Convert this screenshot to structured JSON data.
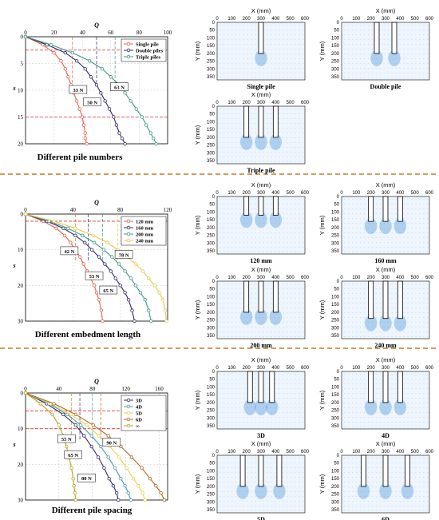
{
  "colors": {
    "single": "#e8604c",
    "double": "#2e2a6b",
    "triple": "#3c9a86",
    "e120": "#e8604c",
    "e160": "#2e2a6b",
    "e200": "#3c9a86",
    "e240": "#e8c84a",
    "s3d": "#2e2a6b",
    "s4d": "#4f9aa8",
    "s5d": "#e8d24a",
    "s6d": "#b5651d",
    "sinf": "#b8a020",
    "separator": "#d89a5a",
    "refline": "#e03030",
    "pivfield": "#3a8ad8"
  },
  "chart_data": [
    {
      "type": "line",
      "caption": "Different pile numbers",
      "xlabel": "Q",
      "ylabel": "s",
      "xlim": [
        0,
        100
      ],
      "ylim": [
        0,
        20
      ],
      "xticks": [
        "0",
        "20",
        "40",
        "60",
        "80",
        "100"
      ],
      "yticks": [
        "0",
        "5",
        "10",
        "15",
        "20"
      ],
      "refline_y": [
        2.5,
        15
      ],
      "legend_position": "top-right",
      "series": [
        {
          "name": "Single pile",
          "color_key": "single",
          "x": [
            0,
            12,
            20,
            25,
            28,
            30,
            32,
            34,
            36,
            38,
            40,
            41,
            42,
            42,
            43
          ],
          "y": [
            0,
            1.5,
            3,
            4.5,
            6,
            7.5,
            9,
            10.5,
            12,
            13.5,
            15,
            16.5,
            18,
            19,
            20
          ]
        },
        {
          "name": "Double piles",
          "color_key": "double",
          "x": [
            0,
            15,
            28,
            36,
            42,
            46,
            50,
            53,
            56,
            59,
            62,
            64,
            66,
            68,
            70
          ],
          "y": [
            0,
            1.5,
            3,
            4.5,
            6,
            7.5,
            9,
            10.5,
            12,
            13.5,
            15,
            16.5,
            18,
            19,
            20
          ]
        },
        {
          "name": "Triple piles",
          "color_key": "triple",
          "x": [
            0,
            18,
            33,
            45,
            54,
            60,
            66,
            70,
            74,
            78,
            82,
            85,
            88,
            90,
            92
          ],
          "y": [
            0,
            1.5,
            3,
            4.5,
            6,
            7.5,
            9,
            10.5,
            12,
            13.5,
            15,
            16.5,
            18,
            19,
            20
          ]
        }
      ],
      "vlines": [
        {
          "x": 33,
          "color_key": "single"
        },
        {
          "x": 50,
          "color_key": "double"
        },
        {
          "x": 63,
          "color_key": "triple"
        }
      ],
      "annotations": [
        {
          "text": "33 N",
          "x": 37,
          "y": 10
        },
        {
          "text": "50 N",
          "x": 47,
          "y": 12.3
        },
        {
          "text": "63 N",
          "x": 66,
          "y": 9.5
        }
      ]
    },
    {
      "type": "line",
      "caption": "Different embedment length",
      "xlabel": "Q",
      "ylabel": "s",
      "xlim": [
        0,
        120
      ],
      "ylim": [
        0,
        30
      ],
      "xticks": [
        "0",
        "40",
        "80",
        "120"
      ],
      "xtick_values": [
        0,
        40,
        80,
        120
      ],
      "yticks": [
        "0",
        "10",
        "20",
        "30"
      ],
      "refline_y": [
        2
      ],
      "legend_position": "top-right",
      "series": [
        {
          "name": "120 mm",
          "color_key": "e120",
          "x": [
            0,
            15,
            26,
            33,
            38,
            42,
            46,
            49,
            52,
            55,
            58,
            60,
            62,
            64,
            65
          ],
          "y": [
            0,
            2,
            4,
            6,
            8,
            10,
            12,
            14,
            16,
            18,
            20,
            22,
            24,
            27,
            30
          ]
        },
        {
          "name": "160 mm",
          "color_key": "e160",
          "x": [
            0,
            18,
            32,
            42,
            50,
            56,
            62,
            67,
            72,
            76,
            80,
            84,
            87,
            90,
            92
          ],
          "y": [
            0,
            2,
            4,
            6,
            8,
            10,
            12,
            14,
            16,
            18,
            20,
            22,
            24,
            27,
            30
          ]
        },
        {
          "name": "200 mm",
          "color_key": "e200",
          "x": [
            0,
            20,
            36,
            48,
            58,
            66,
            73,
            79,
            84,
            89,
            93,
            97,
            101,
            104,
            106
          ],
          "y": [
            0,
            2,
            4,
            6,
            8,
            10,
            12,
            14,
            16,
            18,
            20,
            22,
            24,
            27,
            30
          ]
        },
        {
          "name": "240 mm",
          "color_key": "e240",
          "x": [
            0,
            24,
            42,
            57,
            69,
            78,
            86,
            93,
            99,
            104,
            109,
            113,
            116,
            118,
            119
          ],
          "y": [
            0,
            2,
            4,
            6,
            8,
            10,
            12,
            14,
            16,
            18,
            20,
            22,
            24,
            27,
            30
          ]
        }
      ],
      "vlines": [
        {
          "x": 42,
          "color_key": "e120"
        },
        {
          "x": 53,
          "color_key": "e160"
        },
        {
          "x": 65,
          "color_key": "e200"
        },
        {
          "x": 78,
          "color_key": "e240"
        }
      ],
      "annotations": [
        {
          "text": "42 N",
          "x": 37,
          "y": 10.5
        },
        {
          "text": "53 N",
          "x": 58,
          "y": 17.5
        },
        {
          "text": "65 N",
          "x": 70,
          "y": 21.5
        },
        {
          "text": "78 N",
          "x": 83,
          "y": 11.5
        }
      ]
    },
    {
      "type": "line",
      "caption": "Different pile spacing",
      "xlabel": "Q",
      "ylabel": "s",
      "xlim": [
        0,
        170
      ],
      "ylim": [
        0,
        30
      ],
      "xticks": [
        "0",
        "40",
        "80",
        "120",
        "160"
      ],
      "xtick_values": [
        0,
        40,
        80,
        120,
        160
      ],
      "yticks": [
        "0",
        "10",
        "20",
        "30"
      ],
      "refline_y": [
        5,
        10
      ],
      "legend_position": "top-right",
      "series": [
        {
          "name": "3D",
          "color_key": "s3d",
          "x": [
            0,
            25,
            45,
            60,
            70,
            79,
            87,
            94,
            100,
            105,
            109,
            111
          ],
          "y": [
            0,
            3,
            6,
            9,
            12,
            15,
            18,
            21,
            24,
            26,
            28,
            30
          ]
        },
        {
          "name": "4D",
          "color_key": "s4d",
          "x": [
            0,
            28,
            50,
            66,
            79,
            90,
            99,
            107,
            114,
            119,
            123,
            126
          ],
          "y": [
            0,
            3,
            6,
            9,
            12,
            15,
            18,
            21,
            24,
            26,
            28,
            30
          ]
        },
        {
          "name": "5D",
          "color_key": "s5d",
          "x": [
            0,
            30,
            54,
            73,
            88,
            101,
            112,
            121,
            129,
            135,
            140,
            143
          ],
          "y": [
            0,
            3,
            6,
            9,
            12,
            15,
            18,
            21,
            24,
            26,
            28,
            30
          ]
        },
        {
          "name": "6D",
          "color_key": "s6d",
          "x": [
            0,
            34,
            60,
            81,
            99,
            114,
            127,
            139,
            149,
            156,
            162,
            166
          ],
          "y": [
            0,
            3,
            6,
            9,
            12,
            15,
            18,
            21,
            24,
            26,
            28,
            30
          ]
        },
        {
          "name": "∞",
          "color_key": "sinf",
          "x": [
            0,
            18,
            32,
            40,
            45,
            49,
            52,
            55,
            57,
            58,
            59,
            60
          ],
          "y": [
            0,
            3,
            6,
            9,
            12,
            15,
            18,
            21,
            24,
            26,
            28,
            30
          ]
        }
      ],
      "vlines": [
        {
          "x": 55,
          "color_key": "sinf"
        },
        {
          "x": 65,
          "color_key": "s3d"
        },
        {
          "x": 80,
          "color_key": "s4d"
        },
        {
          "x": 90,
          "color_key": "s6d"
        }
      ],
      "annotations": [
        {
          "text": "55 N",
          "x": 49,
          "y": 13
        },
        {
          "text": "65 N",
          "x": 57,
          "y": 17.5
        },
        {
          "text": "80 N",
          "x": 73,
          "y": 24
        },
        {
          "text": "90 N",
          "x": 103,
          "y": 14
        }
      ]
    }
  ],
  "piv_panels": {
    "x_axis_label": "X (mm)",
    "y_axis_label": "Y (mm)",
    "x_ticks": [
      "0",
      "100",
      "200",
      "300",
      "400",
      "500",
      "600"
    ],
    "y_ticks": [
      "0",
      "50",
      "100",
      "150",
      "200",
      "250",
      "300",
      "350"
    ],
    "row1": [
      {
        "caption": "Single pile",
        "piles": [
          300
        ]
      },
      {
        "caption": "Double pile",
        "piles": [
          240,
          360
        ]
      },
      {
        "caption": "Triple pile",
        "piles": [
          200,
          300,
          400
        ]
      }
    ],
    "row2": [
      {
        "caption": "120 mm",
        "piles": [
          200,
          300,
          400
        ],
        "length": 120
      },
      {
        "caption": "160 mm",
        "piles": [
          200,
          300,
          400
        ],
        "length": 160
      },
      {
        "caption": "200 mm",
        "piles": [
          200,
          300,
          400
        ],
        "length": 200
      },
      {
        "caption": "240 mm",
        "piles": [
          200,
          300,
          400
        ],
        "length": 240
      }
    ],
    "row3": [
      {
        "caption": "3D",
        "piles": [
          225,
          300,
          375
        ]
      },
      {
        "caption": "4D",
        "piles": [
          200,
          300,
          400
        ]
      },
      {
        "caption": "5D",
        "piles": [
          175,
          300,
          425
        ]
      },
      {
        "caption": "6D",
        "piles": [
          150,
          300,
          450
        ]
      }
    ]
  }
}
